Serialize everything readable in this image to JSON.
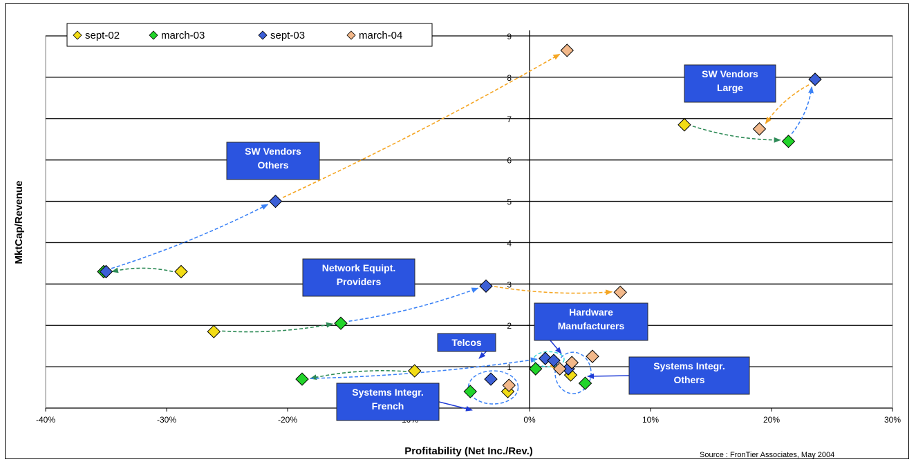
{
  "chart_data": {
    "type": "scatter",
    "xlabel": "Profitability (Net Inc./Rev.)",
    "ylabel": "MktCap/Revenue",
    "xlim": [
      -40,
      30
    ],
    "ylim": [
      0,
      9
    ],
    "x_ticks": [
      "-40%",
      "-30%",
      "-20%",
      "-10%",
      "0%",
      "10%",
      "20%",
      "30%"
    ],
    "y_ticks": [
      "1",
      "2",
      "3",
      "4",
      "5",
      "6",
      "7",
      "8",
      "9"
    ],
    "grid": "horizontal",
    "legend_position": "top-left",
    "source": "Source : FronTier Associates, May 2004",
    "series": [
      {
        "name": "sept-02",
        "color": "#f2dc16",
        "points": [
          [
            -28.8,
            3.3
          ],
          [
            -26.1,
            1.85
          ],
          [
            -9.5,
            0.9
          ],
          [
            -1.8,
            0.4
          ],
          [
            3.4,
            0.8
          ],
          [
            12.8,
            6.85
          ]
        ]
      },
      {
        "name": "march-03",
        "color": "#22d42a",
        "points": [
          [
            -35.2,
            3.3
          ],
          [
            -15.6,
            2.05
          ],
          [
            -18.8,
            0.7
          ],
          [
            -4.9,
            0.4
          ],
          [
            0.5,
            0.95
          ],
          [
            4.6,
            0.6
          ],
          [
            21.4,
            6.45
          ]
        ]
      },
      {
        "name": "sept-03",
        "color": "#3c5fd6",
        "points": [
          [
            -35.0,
            3.3
          ],
          [
            -21.0,
            5.0
          ],
          [
            -3.6,
            2.95
          ],
          [
            -3.2,
            0.7
          ],
          [
            1.3,
            1.2
          ],
          [
            2.0,
            1.15
          ],
          [
            3.2,
            0.95
          ],
          [
            23.6,
            7.95
          ]
        ]
      },
      {
        "name": "march-04",
        "color": "#f2b88a",
        "points": [
          [
            3.1,
            8.65
          ],
          [
            7.5,
            2.8
          ],
          [
            -1.7,
            0.55
          ],
          [
            2.5,
            0.95
          ],
          [
            3.5,
            1.1
          ],
          [
            5.2,
            1.25
          ],
          [
            19.0,
            6.75
          ]
        ]
      }
    ],
    "annotations": [
      {
        "text": [
          "SW Vendors",
          "Large"
        ]
      },
      {
        "text": [
          "SW Vendors",
          "Others"
        ]
      },
      {
        "text": [
          "Network Equipt.",
          "Providers"
        ]
      },
      {
        "text": [
          "Hardware",
          "Manufacturers"
        ]
      },
      {
        "text": [
          "Telcos"
        ]
      },
      {
        "text": [
          "Systems  Integr.",
          "Others"
        ]
      },
      {
        "text": [
          "Systems Integr.",
          "French"
        ]
      }
    ]
  }
}
